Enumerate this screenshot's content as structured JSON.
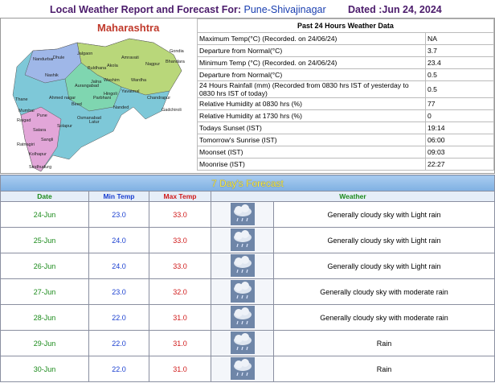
{
  "header": {
    "title": "Local Weather Report and Forecast For:",
    "station": "Pune-Shivajinagar",
    "dated": "Dated :Jun 24, 2024"
  },
  "map": {
    "title": "Maharashtra",
    "labels": [
      "Nandurbar",
      "Dhule",
      "Jalgaon",
      "Buldhana",
      "Akola",
      "Amravati",
      "Nagpur",
      "Bhandara",
      "Gondia",
      "Wardha",
      "Washim",
      "Yavatmal",
      "Chandrapur",
      "Gadchiroli",
      "Nashik",
      "Aurangabad",
      "Jalna",
      "Hingoli",
      "Parbhani",
      "Nanded",
      "Thane",
      "Mumbai",
      "Raigad",
      "Pune",
      "Ahmed nagar",
      "Beed",
      "Latur",
      "Osmanabad",
      "Solapur",
      "Satara",
      "Ratnagiri",
      "Sangli",
      "Kolhapur",
      "Sindhudurg"
    ]
  },
  "past": {
    "title": "Past 24 Hours Weather Data",
    "rows": [
      [
        "Maximum Temp(°C) (Recorded. on 24/06/24)",
        "NA"
      ],
      [
        "Departure from Normal(°C)",
        "3.7"
      ],
      [
        "Minimum Temp (°C) (Recorded. on 24/06/24)",
        "23.4"
      ],
      [
        "Departure from Normal(°C)",
        "0.5"
      ],
      [
        "24 Hours Rainfall (mm) (Recorded from 0830 hrs IST of yesterday to 0830 hrs IST of today)",
        "0.5"
      ],
      [
        "Relative Humidity at 0830 hrs (%)",
        "77"
      ],
      [
        "Relative Humidity at 1730 hrs (%)",
        "0"
      ],
      [
        "Todays Sunset (IST)",
        "19:14"
      ],
      [
        "Tomorrow's Sunrise (IST)",
        "06:00"
      ],
      [
        "Moonset (IST)",
        "09:03"
      ],
      [
        "Moonrise (IST)",
        "22:27"
      ]
    ]
  },
  "forecast": {
    "title": "7 Day's Forecast",
    "columns": [
      "Date",
      "Min Temp",
      "Max Temp",
      "Weather"
    ],
    "rows": [
      [
        "24-Jun",
        "23.0",
        "33.0",
        "Generally cloudy sky with Light rain"
      ],
      [
        "25-Jun",
        "24.0",
        "33.0",
        "Generally cloudy sky with Light rain"
      ],
      [
        "26-Jun",
        "24.0",
        "33.0",
        "Generally cloudy sky with Light rain"
      ],
      [
        "27-Jun",
        "23.0",
        "32.0",
        "Generally cloudy sky with moderate rain"
      ],
      [
        "28-Jun",
        "22.0",
        "31.0",
        "Generally cloudy sky with moderate rain"
      ],
      [
        "29-Jun",
        "22.0",
        "31.0",
        "Rain"
      ],
      [
        "30-Jun",
        "22.0",
        "31.0",
        "Rain"
      ]
    ]
  }
}
